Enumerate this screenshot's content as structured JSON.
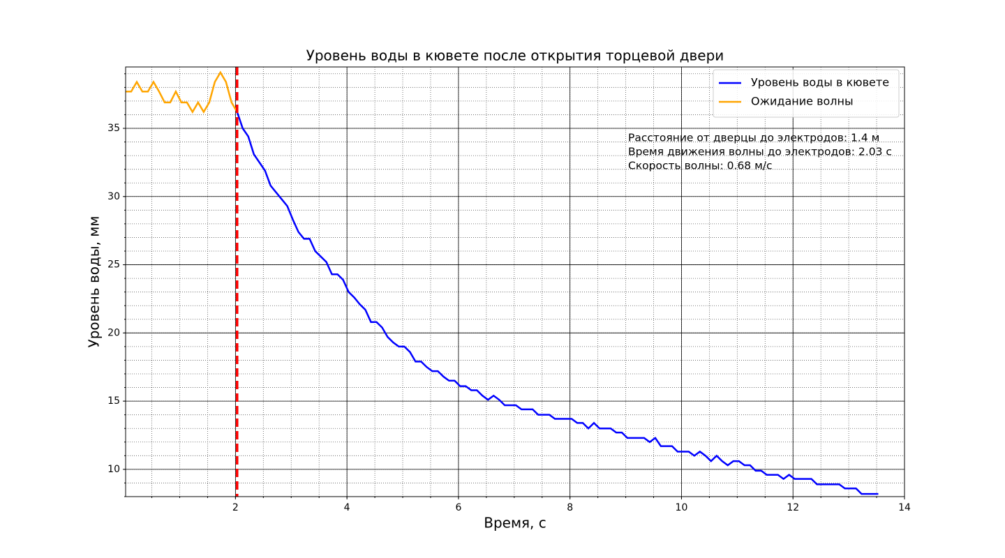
{
  "chart_data": {
    "type": "line",
    "title": "Уровень воды в кювете после открытия торцевой двери",
    "x_label": "Время, с",
    "y_label": "Уровень воды, мм",
    "xlim": [
      0.03,
      14
    ],
    "ylim": [
      8.0,
      39.5
    ],
    "xticks": [
      2,
      4,
      6,
      8,
      10,
      12,
      14
    ],
    "yticks": [
      10,
      15,
      20,
      25,
      30,
      35
    ],
    "x_minor_step": 0.5,
    "y_minor_step": 1,
    "grid": true,
    "legend_position": "upper right",
    "series": [
      {
        "name": "Уровень воды в кювете",
        "color": "#0000ff",
        "x": [
          2.03,
          2.13,
          2.23,
          2.33,
          2.43,
          2.53,
          2.63,
          2.73,
          2.83,
          2.93,
          3.03,
          3.13,
          3.23,
          3.33,
          3.43,
          3.53,
          3.63,
          3.73,
          3.83,
          3.93,
          4.03,
          4.13,
          4.23,
          4.33,
          4.43,
          4.53,
          4.63,
          4.73,
          4.83,
          4.93,
          5.03,
          5.13,
          5.23,
          5.33,
          5.43,
          5.53,
          5.63,
          5.73,
          5.83,
          5.93,
          6.03,
          6.13,
          6.23,
          6.33,
          6.43,
          6.53,
          6.63,
          6.73,
          6.83,
          6.93,
          7.03,
          7.13,
          7.23,
          7.33,
          7.43,
          7.53,
          7.63,
          7.73,
          7.83,
          7.93,
          8.03,
          8.13,
          8.23,
          8.33,
          8.43,
          8.53,
          8.63,
          8.73,
          8.83,
          8.93,
          9.03,
          9.13,
          9.23,
          9.33,
          9.43,
          9.53,
          9.63,
          9.73,
          9.83,
          9.93,
          10.03,
          10.13,
          10.23,
          10.33,
          10.43,
          10.53,
          10.63,
          10.73,
          10.83,
          10.93,
          11.03,
          11.13,
          11.23,
          11.33,
          11.43,
          11.53,
          11.63,
          11.73,
          11.83,
          11.93,
          12.03,
          12.13,
          12.23,
          12.33,
          12.43,
          12.53,
          12.63,
          12.73,
          12.83,
          12.93,
          13.03,
          13.13,
          13.23,
          13.33,
          13.43,
          13.53
        ],
        "values": [
          36.2,
          35.0,
          34.4,
          33.1,
          32.5,
          31.9,
          30.8,
          30.3,
          29.8,
          29.3,
          28.3,
          27.4,
          26.9,
          26.9,
          26.0,
          25.6,
          25.2,
          24.3,
          24.3,
          23.9,
          23.0,
          22.6,
          22.1,
          21.7,
          20.8,
          20.8,
          20.4,
          19.7,
          19.3,
          19.0,
          19.0,
          18.6,
          17.9,
          17.9,
          17.5,
          17.2,
          17.2,
          16.8,
          16.5,
          16.5,
          16.1,
          16.1,
          15.8,
          15.8,
          15.4,
          15.1,
          15.4,
          15.1,
          14.7,
          14.7,
          14.7,
          14.4,
          14.4,
          14.4,
          14.0,
          14.0,
          14.0,
          13.7,
          13.7,
          13.7,
          13.7,
          13.4,
          13.4,
          13.0,
          13.4,
          13.0,
          13.0,
          13.0,
          12.7,
          12.7,
          12.3,
          12.3,
          12.3,
          12.3,
          12.0,
          12.3,
          11.7,
          11.7,
          11.7,
          11.3,
          11.3,
          11.3,
          11.0,
          11.3,
          11.0,
          10.6,
          11.0,
          10.6,
          10.3,
          10.6,
          10.6,
          10.3,
          10.3,
          9.9,
          9.9,
          9.6,
          9.6,
          9.6,
          9.3,
          9.6,
          9.3,
          9.3,
          9.3,
          9.3,
          8.9,
          8.9,
          8.9,
          8.9,
          8.9,
          8.6,
          8.6,
          8.6,
          8.2,
          8.2,
          8.2,
          8.2
        ]
      },
      {
        "name": "Ожидание волны",
        "color": "#ffa500",
        "x": [
          0.03,
          0.13,
          0.23,
          0.33,
          0.43,
          0.53,
          0.63,
          0.73,
          0.83,
          0.93,
          1.03,
          1.13,
          1.23,
          1.33,
          1.43,
          1.53,
          1.63,
          1.73,
          1.83,
          1.93,
          2.03
        ],
        "values": [
          37.7,
          37.7,
          38.4,
          37.7,
          37.7,
          38.4,
          37.7,
          36.9,
          36.9,
          37.7,
          36.9,
          36.9,
          36.2,
          36.9,
          36.2,
          36.9,
          38.4,
          39.1,
          38.4,
          36.9,
          36.2
        ]
      }
    ],
    "vline": {
      "x": 2.03,
      "color": "#ff0000"
    },
    "annotations": [
      "Расстояние от дверцы до электродов: 1.4 м",
      "Время движения волны до электродов: 2.03 с",
      "Скорость волны: 0.68 м/с"
    ]
  }
}
